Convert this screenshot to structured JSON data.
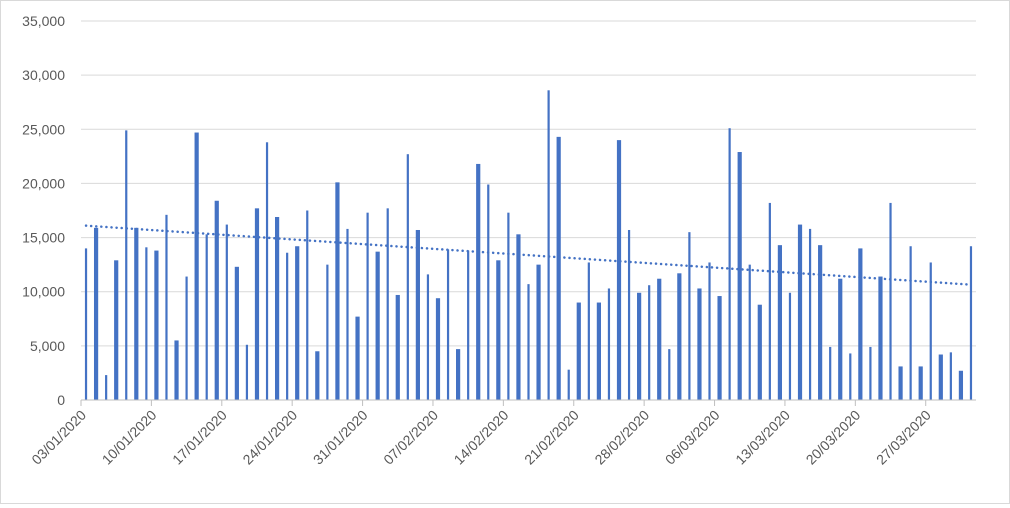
{
  "chart_data": {
    "type": "bar",
    "title": "",
    "xlabel": "",
    "ylabel": "",
    "ylim": [
      0,
      35000
    ],
    "grid": true,
    "legend": "none",
    "bar_color": "#4472c4",
    "trendline": {
      "type": "linear",
      "style": "dotted",
      "color": "#4472c4",
      "start": 16100,
      "end": 10650
    },
    "x_tick_labels": [
      "03/01/2020",
      "10/01/2020",
      "17/01/2020",
      "24/01/2020",
      "31/01/2020",
      "07/02/2020",
      "14/02/2020",
      "21/02/2020",
      "28/02/2020",
      "06/03/2020",
      "13/03/2020",
      "20/03/2020",
      "27/03/2020"
    ],
    "y_tick_labels": [
      "0",
      "5,000",
      "10,000",
      "15,000",
      "20,000",
      "25,000",
      "30,000",
      "35,000"
    ],
    "start_date": "03/01/2020",
    "values": [
      14000,
      15900,
      2300,
      12900,
      24900,
      15900,
      14100,
      13800,
      17100,
      5500,
      11400,
      24700,
      15300,
      18400,
      16200,
      12300,
      5100,
      17700,
      23800,
      16900,
      13600,
      14200,
      17500,
      4500,
      12500,
      20100,
      15800,
      7700,
      17300,
      13700,
      17700,
      9700,
      22700,
      15700,
      11600,
      9400,
      13900,
      4700,
      13800,
      21800,
      19900,
      12900,
      17300,
      15300,
      10700,
      12500,
      28600,
      24300,
      2800,
      9000,
      12700,
      9000,
      10300,
      24000,
      15700,
      9900,
      10600,
      11200,
      4700,
      11700,
      15500,
      10300,
      12700,
      9600,
      25100,
      22900,
      12500,
      8800,
      18200,
      14300,
      9900,
      16200,
      15800,
      14300,
      4900,
      11200,
      4300,
      14000,
      4900,
      11400,
      18200,
      3100,
      14200,
      3100,
      12700,
      4200,
      4400,
      2700,
      14200
    ]
  }
}
